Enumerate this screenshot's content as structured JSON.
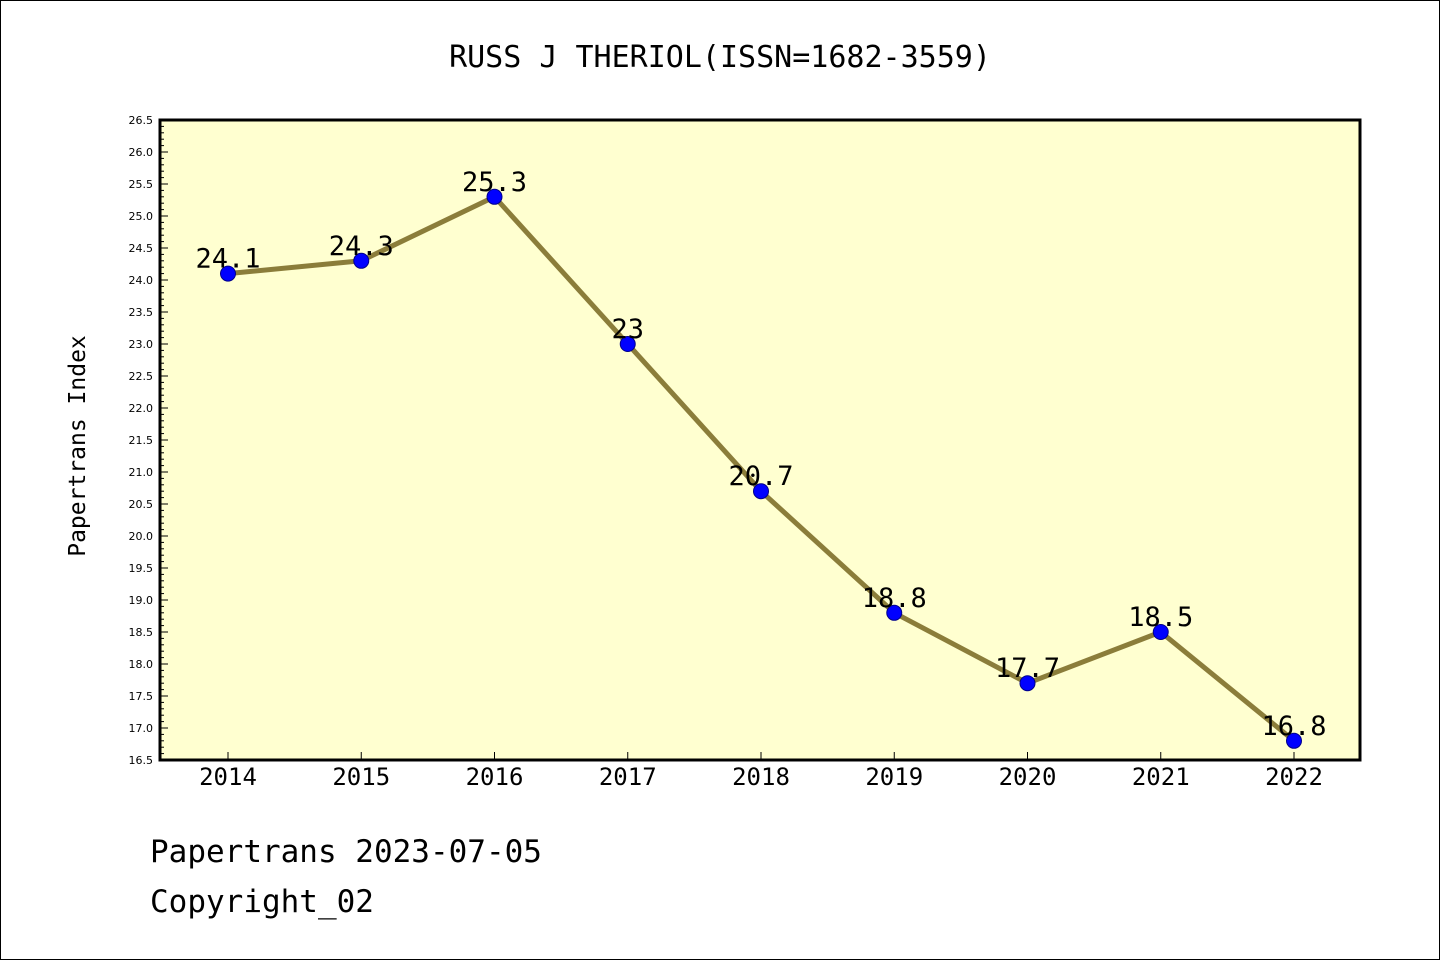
{
  "chart_data": {
    "type": "line",
    "title": "RUSS J THERIOL(ISSN=1682-3559)",
    "xlabel": "",
    "ylabel": "Papertrans Index",
    "categories": [
      "2014",
      "2015",
      "2016",
      "2017",
      "2018",
      "2019",
      "2020",
      "2021",
      "2022"
    ],
    "series": [
      {
        "values": [
          24.1,
          24.3,
          25.3,
          23.0,
          20.7,
          18.8,
          17.7,
          18.5,
          16.8
        ],
        "labels": [
          "24.1",
          "24.3",
          "25.3",
          "23",
          "20.7",
          "18.8",
          "17.7",
          "18.5",
          "16.8"
        ]
      }
    ],
    "ylim": [
      16.5,
      26.5
    ],
    "ytick_step": 0.5,
    "yticks": [
      "16.5",
      "17.0",
      "17.5",
      "18.0",
      "18.5",
      "19.0",
      "19.5",
      "20.0",
      "20.5",
      "21.0",
      "21.5",
      "22.0",
      "22.5",
      "23.0",
      "23.5",
      "24.0",
      "24.5",
      "25.0",
      "25.5",
      "26.0",
      "26.5"
    ],
    "grid": false,
    "legend": "none",
    "colors": {
      "plot_background": "#ffffd0",
      "line": "#8b7d3a",
      "marker": "#0000ff",
      "axis": "#000000"
    }
  },
  "footer": {
    "date_line": "Papertrans 2023-07-05",
    "copyright_line": "Copyright_02"
  }
}
